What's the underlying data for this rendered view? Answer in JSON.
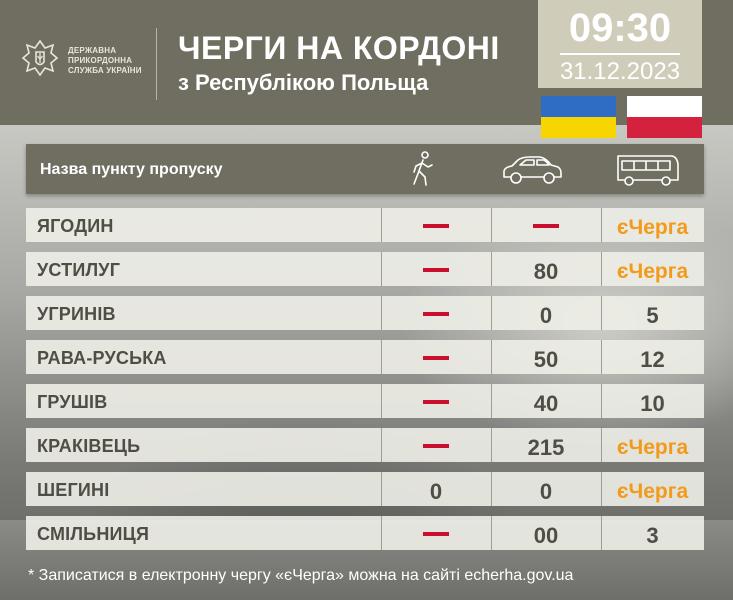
{
  "header": {
    "org_lines": [
      "ДЕРЖАВНА",
      "ПРИКОРДОННА",
      "СЛУЖБА УКРАЇНИ"
    ],
    "title": "ЧЕРГИ НА КОРДОНІ",
    "subtitle": "з Республікою Польща",
    "time": "09:30",
    "date": "31.12.2023"
  },
  "flags": {
    "ukraine": [
      "#2f6dc5",
      "#f6d500"
    ],
    "poland": [
      "#ffffff",
      "#d4213d"
    ]
  },
  "table": {
    "header_label": "Назва пункту пропуску",
    "columns": [
      {
        "icon": "pedestrian-icon"
      },
      {
        "icon": "car-icon"
      },
      {
        "icon": "bus-icon"
      }
    ],
    "rows": [
      {
        "name": "ЯГОДИН",
        "pedestrian": "—",
        "car": "—",
        "bus": "єЧерга"
      },
      {
        "name": "УСТИЛУГ",
        "pedestrian": "—",
        "car": "80",
        "bus": "єЧерга"
      },
      {
        "name": "УГРИНІВ",
        "pedestrian": "—",
        "car": "0",
        "bus": "5"
      },
      {
        "name": "РАВА-РУСЬКА",
        "pedestrian": "—",
        "car": "50",
        "bus": "12"
      },
      {
        "name": "ГРУШІВ",
        "pedestrian": "—",
        "car": "40",
        "bus": "10"
      },
      {
        "name": "КРАКІВЕЦЬ",
        "pedestrian": "—",
        "car": "215",
        "bus": "єЧерга"
      },
      {
        "name": "ШЕГИНІ",
        "pedestrian": "0",
        "car": "0",
        "bus": "єЧерга"
      },
      {
        "name": "СМІЛЬНИЦЯ",
        "pedestrian": "—",
        "car": "00",
        "bus": "3"
      }
    ]
  },
  "colors": {
    "olive": "#6f6e60",
    "accent_orange": "#f39a1a",
    "dash_red": "#c8102e"
  },
  "footer": "* Записатися в електронну чергу «єЧерга» можна на сайті echerha.gov.ua"
}
